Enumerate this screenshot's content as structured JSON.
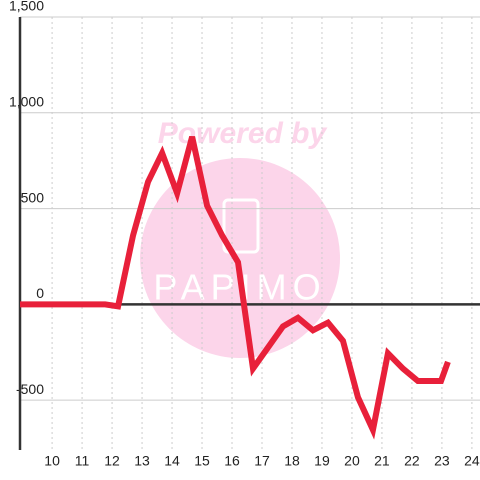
{
  "chart_data": {
    "type": "line",
    "watermark": {
      "top": "Powered by",
      "bottom": "PAPIMO"
    },
    "x": [
      8.93,
      10.27,
      11.77,
      12.2,
      12.7,
      13.2,
      13.67,
      14.17,
      14.67,
      15.17,
      15.67,
      16.2,
      16.7,
      17.2,
      17.7,
      18.2,
      18.7,
      19.2,
      19.7,
      20.2,
      20.7,
      21.2,
      21.7,
      22.2,
      22.7,
      22.97,
      23.2
    ],
    "series": [
      {
        "color": "#e8203a",
        "values": [
          0,
          0,
          0,
          -10,
          360,
          640,
          790,
          580,
          875,
          515,
          360,
          220,
          -335,
          -225,
          -115,
          -70,
          -135,
          -95,
          -190,
          -485,
          -655,
          -255,
          -335,
          -400,
          -400,
          -400,
          -300
        ]
      }
    ],
    "xlim": [
      8.93,
      24.27
    ],
    "xticks": [
      10,
      11,
      12,
      13,
      14,
      15,
      16,
      17,
      18,
      19,
      20,
      21,
      22,
      23,
      24
    ],
    "ylim": [
      -760,
      1500
    ],
    "yticks": [
      -500,
      0,
      {
        "value": 500,
        "label": "500"
      },
      {
        "value": 1000,
        "label": "1,000"
      },
      {
        "value": 1500,
        "label": "1,500"
      }
    ],
    "grid": true
  }
}
